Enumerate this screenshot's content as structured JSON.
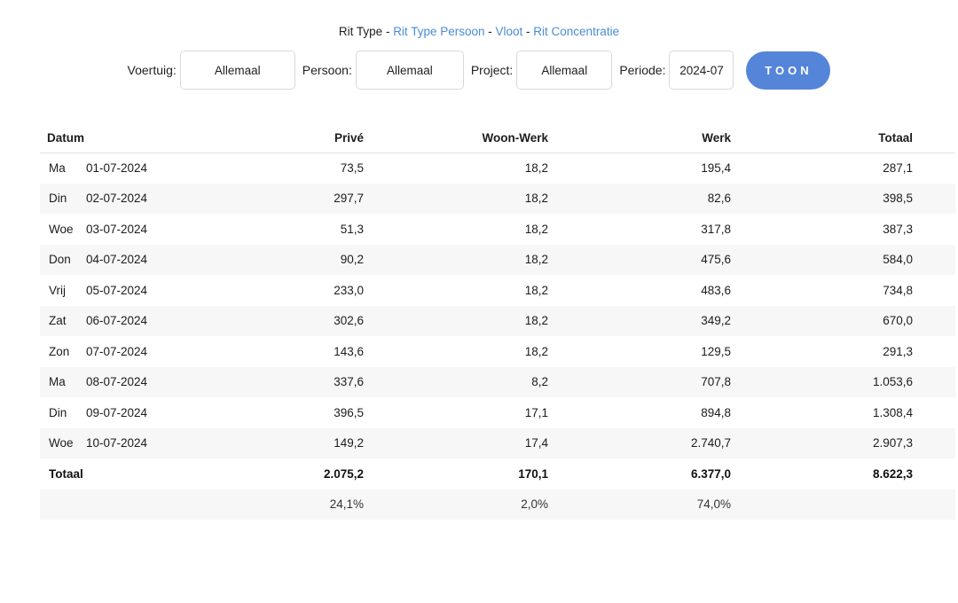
{
  "nav": {
    "current": "Rit Type",
    "separator": " - ",
    "links": [
      "Rit Type Persoon",
      "Vloot",
      "Rit Concentratie"
    ]
  },
  "filters": {
    "voertuig_label": "Voertuig:",
    "voertuig_value": "Allemaal",
    "persoon_label": "Persoon:",
    "persoon_value": "Allemaal",
    "project_label": "Project:",
    "project_value": "Allemaal",
    "periode_label": "Periode:",
    "periode_value": "2024-07",
    "toon_label": "TOON"
  },
  "table": {
    "headers": [
      "Datum",
      "Privé",
      "Woon-Werk",
      "Werk",
      "Totaal"
    ],
    "rows": [
      {
        "day": "Ma",
        "date": "01-07-2024",
        "prive": "73,5",
        "woon": "18,2",
        "werk": "195,4",
        "totaal": "287,1"
      },
      {
        "day": "Din",
        "date": "02-07-2024",
        "prive": "297,7",
        "woon": "18,2",
        "werk": "82,6",
        "totaal": "398,5"
      },
      {
        "day": "Woe",
        "date": "03-07-2024",
        "prive": "51,3",
        "woon": "18,2",
        "werk": "317,8",
        "totaal": "387,3"
      },
      {
        "day": "Don",
        "date": "04-07-2024",
        "prive": "90,2",
        "woon": "18,2",
        "werk": "475,6",
        "totaal": "584,0"
      },
      {
        "day": "Vrij",
        "date": "05-07-2024",
        "prive": "233,0",
        "woon": "18,2",
        "werk": "483,6",
        "totaal": "734,8"
      },
      {
        "day": "Zat",
        "date": "06-07-2024",
        "prive": "302,6",
        "woon": "18,2",
        "werk": "349,2",
        "totaal": "670,0"
      },
      {
        "day": "Zon",
        "date": "07-07-2024",
        "prive": "143,6",
        "woon": "18,2",
        "werk": "129,5",
        "totaal": "291,3"
      },
      {
        "day": "Ma",
        "date": "08-07-2024",
        "prive": "337,6",
        "woon": "8,2",
        "werk": "707,8",
        "totaal": "1.053,6"
      },
      {
        "day": "Din",
        "date": "09-07-2024",
        "prive": "396,5",
        "woon": "17,1",
        "werk": "894,8",
        "totaal": "1.308,4"
      },
      {
        "day": "Woe",
        "date": "10-07-2024",
        "prive": "149,2",
        "woon": "17,4",
        "werk": "2.740,7",
        "totaal": "2.907,3"
      }
    ],
    "total_row": {
      "label": "Totaal",
      "prive": "2.075,2",
      "woon": "170,1",
      "werk": "6.377,0",
      "totaal": "8.622,3"
    },
    "percent_row": {
      "prive": "24,1%",
      "woon": "2,0%",
      "werk": "74,0%"
    }
  },
  "colors": {
    "link": "#4a8cd6",
    "button_bg": "#5585d8",
    "stripe": "#f7f7f7",
    "border": "#d9d9d9"
  }
}
